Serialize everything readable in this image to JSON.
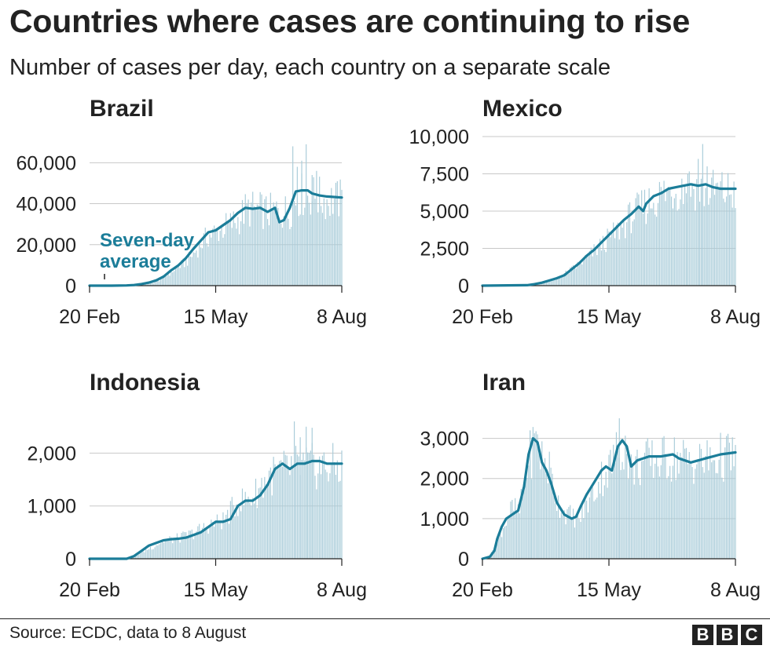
{
  "title": "Countries where cases are continuing to rise",
  "subtitle": "Number of cases per day, each country on a separate scale",
  "source": "Source: ECDC, data to 8 August",
  "logo": [
    "B",
    "B",
    "C"
  ],
  "colors": {
    "bar": "#a9ccd9",
    "line": "#1b7d99",
    "grid": "#c8c8c8",
    "text": "#222222"
  },
  "chart_data": [
    {
      "type": "bar",
      "title": "Brazil",
      "x_ticks": [
        "20 Feb",
        "15 May",
        "8 Aug"
      ],
      "y_ticks": [
        "0",
        "20,000",
        "40,000",
        "60,000"
      ],
      "y_tick_values": [
        0,
        20000,
        40000,
        60000
      ],
      "ylim": [
        0,
        72000
      ],
      "annotation": [
        "Seven-day",
        "average"
      ],
      "daily": [
        [
          0,
          0
        ],
        [
          14,
          0
        ],
        [
          25,
          0
        ],
        [
          35,
          500
        ],
        [
          40,
          1000
        ],
        [
          45,
          2000
        ],
        [
          50,
          4000
        ],
        [
          55,
          7000
        ],
        [
          60,
          9500
        ],
        [
          65,
          12000
        ],
        [
          70,
          16000
        ],
        [
          75,
          21000
        ],
        [
          80,
          25000
        ],
        [
          85,
          27000
        ],
        [
          90,
          29000
        ],
        [
          95,
          31000
        ],
        [
          100,
          33000
        ],
        [
          105,
          38000
        ],
        [
          110,
          38500
        ],
        [
          115,
          38000
        ],
        [
          120,
          37000
        ],
        [
          125,
          37500
        ],
        [
          130,
          37000
        ],
        [
          135,
          38000
        ],
        [
          140,
          45000
        ],
        [
          145,
          46000
        ],
        [
          150,
          45000
        ],
        [
          155,
          44000
        ],
        [
          160,
          43000
        ],
        [
          170,
          43000
        ]
      ],
      "spikes": [
        [
          137,
          68000
        ],
        [
          140,
          58000
        ],
        [
          143,
          61000
        ],
        [
          146,
          69000
        ],
        [
          150,
          54000
        ],
        [
          153,
          56000
        ]
      ],
      "average": [
        [
          0,
          0
        ],
        [
          15,
          0
        ],
        [
          25,
          100
        ],
        [
          30,
          300
        ],
        [
          35,
          800
        ],
        [
          40,
          1500
        ],
        [
          45,
          2600
        ],
        [
          50,
          4500
        ],
        [
          55,
          7500
        ],
        [
          60,
          10000
        ],
        [
          65,
          13500
        ],
        [
          70,
          18000
        ],
        [
          75,
          22000
        ],
        [
          80,
          26000
        ],
        [
          85,
          27000
        ],
        [
          90,
          29500
        ],
        [
          95,
          32000
        ],
        [
          100,
          35500
        ],
        [
          105,
          38000
        ],
        [
          110,
          37500
        ],
        [
          115,
          38000
        ],
        [
          120,
          36000
        ],
        [
          125,
          38000
        ],
        [
          128,
          31000
        ],
        [
          131,
          32000
        ],
        [
          135,
          38000
        ],
        [
          139,
          46000
        ],
        [
          143,
          46500
        ],
        [
          147,
          46500
        ],
        [
          150,
          45000
        ],
        [
          155,
          44000
        ],
        [
          160,
          43500
        ],
        [
          170,
          43000
        ]
      ]
    },
    {
      "type": "bar",
      "title": "Mexico",
      "x_ticks": [
        "20 Feb",
        "15 May",
        "8 Aug"
      ],
      "y_ticks": [
        "0",
        "2,500",
        "5,000",
        "7,500",
        "10,000"
      ],
      "y_tick_values": [
        0,
        2500,
        5000,
        7500,
        10000
      ],
      "ylim": [
        0,
        10000
      ],
      "daily": [
        [
          0,
          0
        ],
        [
          30,
          30
        ],
        [
          40,
          150
        ],
        [
          50,
          500
        ],
        [
          60,
          1100
        ],
        [
          70,
          1900
        ],
        [
          80,
          2800
        ],
        [
          90,
          3700
        ],
        [
          100,
          4800
        ],
        [
          110,
          5600
        ],
        [
          120,
          6300
        ],
        [
          130,
          6700
        ],
        [
          140,
          6900
        ],
        [
          150,
          6600
        ],
        [
          160,
          6500
        ],
        [
          170,
          6500
        ]
      ],
      "spikes": [
        [
          138,
          7500
        ],
        [
          145,
          8500
        ],
        [
          148,
          9500
        ],
        [
          151,
          8000
        ]
      ],
      "average": [
        [
          0,
          0
        ],
        [
          30,
          30
        ],
        [
          35,
          100
        ],
        [
          40,
          200
        ],
        [
          45,
          350
        ],
        [
          50,
          500
        ],
        [
          55,
          700
        ],
        [
          60,
          1100
        ],
        [
          65,
          1500
        ],
        [
          70,
          2000
        ],
        [
          75,
          2400
        ],
        [
          80,
          2900
        ],
        [
          85,
          3400
        ],
        [
          90,
          3900
        ],
        [
          95,
          4400
        ],
        [
          100,
          4800
        ],
        [
          105,
          5300
        ],
        [
          108,
          5000
        ],
        [
          110,
          5500
        ],
        [
          115,
          6000
        ],
        [
          120,
          6200
        ],
        [
          125,
          6500
        ],
        [
          130,
          6600
        ],
        [
          135,
          6700
        ],
        [
          140,
          6800
        ],
        [
          145,
          6700
        ],
        [
          150,
          6800
        ],
        [
          155,
          6600
        ],
        [
          160,
          6500
        ],
        [
          170,
          6500
        ]
      ]
    },
    {
      "type": "bar",
      "title": "Indonesia",
      "x_ticks": [
        "20 Feb",
        "15 May",
        "8 Aug"
      ],
      "y_ticks": [
        "0",
        "1,000",
        "2,000"
      ],
      "y_tick_values": [
        0,
        1000,
        2000
      ],
      "ylim": [
        0,
        2600
      ],
      "daily": [
        [
          0,
          0
        ],
        [
          25,
          0
        ],
        [
          30,
          50
        ],
        [
          40,
          200
        ],
        [
          50,
          350
        ],
        [
          60,
          400
        ],
        [
          70,
          500
        ],
        [
          80,
          650
        ],
        [
          90,
          750
        ],
        [
          100,
          1100
        ],
        [
          110,
          1200
        ],
        [
          120,
          1600
        ],
        [
          130,
          1700
        ],
        [
          140,
          1800
        ],
        [
          150,
          1800
        ],
        [
          160,
          1800
        ],
        [
          170,
          1800
        ]
      ],
      "spikes": [
        [
          138,
          2650
        ],
        [
          142,
          2300
        ],
        [
          146,
          2500
        ],
        [
          150,
          2480
        ]
      ],
      "average": [
        [
          0,
          0
        ],
        [
          25,
          0
        ],
        [
          30,
          50
        ],
        [
          35,
          150
        ],
        [
          40,
          250
        ],
        [
          45,
          300
        ],
        [
          50,
          350
        ],
        [
          55,
          370
        ],
        [
          60,
          380
        ],
        [
          65,
          400
        ],
        [
          70,
          450
        ],
        [
          75,
          500
        ],
        [
          80,
          600
        ],
        [
          85,
          700
        ],
        [
          90,
          700
        ],
        [
          95,
          750
        ],
        [
          100,
          1000
        ],
        [
          105,
          1100
        ],
        [
          110,
          1100
        ],
        [
          115,
          1200
        ],
        [
          120,
          1400
        ],
        [
          125,
          1700
        ],
        [
          130,
          1800
        ],
        [
          135,
          1700
        ],
        [
          140,
          1800
        ],
        [
          145,
          1800
        ],
        [
          150,
          1850
        ],
        [
          155,
          1850
        ],
        [
          160,
          1800
        ],
        [
          170,
          1800
        ]
      ]
    },
    {
      "type": "bar",
      "title": "Iran",
      "x_ticks": [
        "20 Feb",
        "15 May",
        "8 Aug"
      ],
      "y_ticks": [
        "0",
        "1,000",
        "2,000",
        "3,000"
      ],
      "y_tick_values": [
        0,
        1000,
        2000,
        3000
      ],
      "ylim": [
        0,
        3500
      ],
      "daily": [
        [
          0,
          0
        ],
        [
          5,
          50
        ],
        [
          10,
          500
        ],
        [
          15,
          900
        ],
        [
          20,
          1300
        ],
        [
          25,
          1200
        ],
        [
          30,
          2400
        ],
        [
          35,
          3000
        ],
        [
          40,
          2600
        ],
        [
          45,
          2300
        ],
        [
          50,
          1500
        ],
        [
          55,
          1200
        ],
        [
          60,
          1100
        ],
        [
          65,
          1000
        ],
        [
          70,
          1400
        ],
        [
          75,
          1700
        ],
        [
          80,
          2100
        ],
        [
          85,
          2300
        ],
        [
          90,
          2700
        ],
        [
          95,
          3000
        ],
        [
          100,
          2300
        ],
        [
          110,
          2500
        ],
        [
          120,
          2550
        ],
        [
          130,
          2600
        ],
        [
          140,
          2500
        ],
        [
          150,
          2500
        ],
        [
          160,
          2600
        ],
        [
          170,
          2650
        ]
      ],
      "spikes": [
        [
          32,
          3200
        ],
        [
          37,
          3100
        ],
        [
          92,
          3600
        ]
      ],
      "average": [
        [
          0,
          0
        ],
        [
          5,
          50
        ],
        [
          8,
          200
        ],
        [
          10,
          500
        ],
        [
          13,
          800
        ],
        [
          16,
          1000
        ],
        [
          20,
          1100
        ],
        [
          24,
          1200
        ],
        [
          28,
          1800
        ],
        [
          31,
          2600
        ],
        [
          34,
          3000
        ],
        [
          37,
          2900
        ],
        [
          40,
          2400
        ],
        [
          43,
          2200
        ],
        [
          46,
          1900
        ],
        [
          50,
          1400
        ],
        [
          55,
          1100
        ],
        [
          60,
          1000
        ],
        [
          63,
          1050
        ],
        [
          66,
          1300
        ],
        [
          70,
          1600
        ],
        [
          75,
          1900
        ],
        [
          80,
          2200
        ],
        [
          83,
          2300
        ],
        [
          87,
          2200
        ],
        [
          91,
          2800
        ],
        [
          94,
          2950
        ],
        [
          97,
          2800
        ],
        [
          100,
          2300
        ],
        [
          104,
          2450
        ],
        [
          108,
          2500
        ],
        [
          112,
          2550
        ],
        [
          120,
          2550
        ],
        [
          128,
          2600
        ],
        [
          132,
          2500
        ],
        [
          136,
          2450
        ],
        [
          140,
          2400
        ],
        [
          150,
          2500
        ],
        [
          155,
          2550
        ],
        [
          160,
          2600
        ],
        [
          170,
          2650
        ]
      ]
    }
  ]
}
